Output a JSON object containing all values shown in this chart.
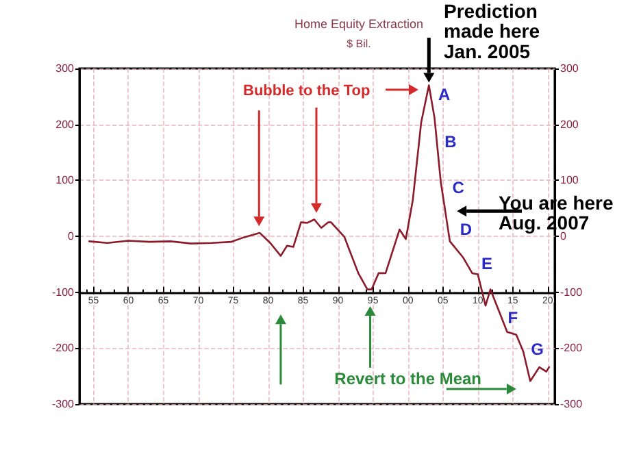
{
  "chart_data": {
    "type": "line",
    "title": "Home Equity Extraction",
    "subtitle": "$ Bil.",
    "x": [
      1954.4,
      1957,
      1960,
      1963,
      1966,
      1969,
      1972,
      1974.7,
      1976.5,
      1978.8,
      1980.3,
      1981.8,
      1982.7,
      1983.6,
      1984.7,
      1985.6,
      1986.6,
      1987.6,
      1988.6,
      1989,
      1990.9,
      1992.9,
      1994.2,
      1994.8,
      1995.8,
      1996.8,
      1998.8,
      1999.7,
      2000.7,
      2001.9,
      2003,
      2003.8,
      2004.7,
      2006,
      2007.9,
      2009.2,
      2010,
      2011.1,
      2011.8,
      2014.2,
      2015.5,
      2016.5,
      2017.5,
      2018.8,
      2019.8,
      2020.2
    ],
    "series": [
      {
        "color": "#8b1a2a",
        "values": [
          -9,
          -12,
          -8,
          -10,
          -9,
          -13,
          -12,
          -10,
          -2,
          6,
          -12,
          -35,
          -17,
          -19,
          25,
          24,
          30,
          15,
          25,
          25,
          -1,
          -66,
          -95,
          -95,
          -66,
          -66,
          12,
          -5,
          65,
          204,
          270,
          212,
          97,
          -9,
          -38,
          -66,
          -68,
          -124,
          -95,
          -171,
          -176,
          -206,
          -259,
          -234,
          -242,
          -234
        ]
      }
    ],
    "xlim": [
      1953,
      2021
    ],
    "xticks": [
      {
        "value": 1955,
        "label": "55"
      },
      {
        "value": 1960,
        "label": "60"
      },
      {
        "value": 1965,
        "label": "65"
      },
      {
        "value": 1970,
        "label": "70"
      },
      {
        "value": 1975,
        "label": "75"
      },
      {
        "value": 1980,
        "label": "80"
      },
      {
        "value": 1985,
        "label": "85"
      },
      {
        "value": 1990,
        "label": "90"
      },
      {
        "value": 1995,
        "label": "95"
      },
      {
        "value": 2000,
        "label": "00"
      },
      {
        "value": 2005,
        "label": "05"
      },
      {
        "value": 2010,
        "label": "10"
      },
      {
        "value": 2015,
        "label": "15"
      },
      {
        "value": 2020,
        "label": "20"
      }
    ],
    "ylim": [
      -300,
      300
    ],
    "yticks": [
      -300,
      -200,
      -100,
      0,
      100,
      200,
      300
    ],
    "y2lim": [
      -300,
      300
    ],
    "y2ticks": [
      -300,
      -200,
      -100,
      0,
      100,
      200,
      300
    ],
    "grid": true,
    "marker": "none",
    "line_style": "solid",
    "annotations": [
      "Bubble to the Top",
      "Revert to the Mean",
      "Prediction\nmade here\nJan. 2005",
      "You are here\nAug. 2007",
      "A",
      "B",
      "C",
      "D",
      "E",
      "F",
      "G"
    ]
  }
}
